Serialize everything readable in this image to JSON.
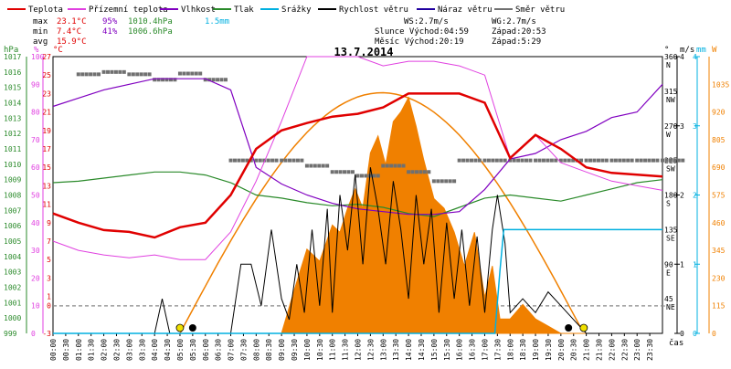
{
  "chart_data": {
    "type": "line",
    "title": "13.7.2014",
    "x_axis_label": "čas",
    "legend": [
      {
        "name": "Teplota",
        "color": "#e00000"
      },
      {
        "name": "Přízemní teplota",
        "color": "#e040e0"
      },
      {
        "name": "Vlhkost",
        "color": "#8000c0"
      },
      {
        "name": "Tlak",
        "color": "#2a8a2a"
      },
      {
        "name": "Srážky",
        "color": "#00b0e0"
      },
      {
        "name": "Rychlost větru",
        "color": "#000000"
      },
      {
        "name": "Náraz větru",
        "color": "#2000a0"
      },
      {
        "name": "Směr větru",
        "color": "#707070"
      }
    ],
    "stats": {
      "max": {
        "label": "max",
        "temp": "23.1°C",
        "hum": "95%",
        "press": "1010.4hPa",
        "rain": "1.5mm"
      },
      "min": {
        "label": "min",
        "temp": "7.4°C",
        "hum": "41%",
        "press": "1006.6hPa"
      },
      "avg": {
        "label": "avg",
        "temp": "15.9°C"
      }
    },
    "wind_info": {
      "ws": "WS:2.7m/s",
      "wg": "WG:2.7m/s"
    },
    "sun": {
      "rise": "Slunce Východ:04:59",
      "set": "Západ:20:53"
    },
    "moon": {
      "rise": "Měsíc  Východ:20:19",
      "set": "Západ:5:29"
    },
    "axes": {
      "hpa": {
        "unit": "hPa",
        "min": 999,
        "max": 1017,
        "ticks": [
          "999",
          "1000",
          "1001",
          "1002",
          "1003",
          "1004",
          "1005",
          "1006",
          "1007",
          "1008",
          "1009",
          "1010",
          "1011",
          "1012",
          "1013",
          "1014",
          "1015",
          "1016",
          "1017"
        ]
      },
      "pct": {
        "unit": "%",
        "min": 0,
        "max": 100,
        "ticks": [
          "0",
          "10",
          "20",
          "30",
          "40",
          "50",
          "60",
          "70",
          "80",
          "90",
          "100"
        ]
      },
      "degc": {
        "unit": "°C",
        "min": -3,
        "max": 27,
        "ticks": [
          "-3",
          "0",
          "1",
          "3",
          "5",
          "7",
          "9",
          "11",
          "13",
          "15",
          "17",
          "19",
          "21",
          "23",
          "25",
          "27"
        ]
      },
      "deg": {
        "unit": "°",
        "min": 0,
        "max": 360,
        "ticks": [
          {
            "v": "360",
            "d": "N"
          },
          {
            "v": "315",
            "d": "NW"
          },
          {
            "v": "270",
            "d": "W"
          },
          {
            "v": "225",
            "d": "SW"
          },
          {
            "v": "180",
            "d": "S"
          },
          {
            "v": "135",
            "d": "SE"
          },
          {
            "v": "90",
            "d": "E"
          },
          {
            "v": "45",
            "d": "NE"
          }
        ]
      },
      "ms": {
        "unit": "m/s",
        "min": 0,
        "max": 4,
        "ticks": [
          "0",
          "1",
          "2",
          "3",
          "4"
        ]
      },
      "mm": {
        "unit": "mm",
        "min": 0,
        "max": 4,
        "ticks": [
          "0",
          "1",
          "2",
          "3",
          "4"
        ]
      },
      "wm2": {
        "unit": "W",
        "min": 0,
        "max": 1150,
        "ticks": [
          "0",
          "115",
          "230",
          "345",
          "460",
          "575",
          "690",
          "805",
          "920",
          "1035"
        ]
      }
    },
    "x_ticks": [
      "00:00",
      "00:30",
      "01:00",
      "01:30",
      "02:00",
      "02:30",
      "03:00",
      "03:30",
      "04:00",
      "04:30",
      "05:00",
      "05:30",
      "06:00",
      "06:30",
      "07:00",
      "07:30",
      "08:00",
      "08:30",
      "09:00",
      "09:30",
      "10:00",
      "10:30",
      "11:00",
      "11:30",
      "12:00",
      "12:30",
      "13:00",
      "13:30",
      "14:00",
      "14:30",
      "15:00",
      "15:30",
      "16:00",
      "16:30",
      "17:00",
      "17:30",
      "18:00",
      "18:30",
      "19:00",
      "19:30",
      "20:00",
      "20:30",
      "21:00",
      "21:30",
      "22:00",
      "22:30",
      "23:00",
      "23:30"
    ],
    "series": {
      "teplota_c": {
        "t": [
          0,
          1,
          2,
          3,
          4,
          5,
          6,
          7,
          8,
          9,
          10,
          11,
          12,
          13,
          14,
          15,
          16,
          17,
          18,
          19,
          20,
          21,
          22,
          23,
          24
        ],
        "v": [
          10,
          9,
          8.2,
          8,
          7.4,
          8.5,
          9,
          12,
          17,
          19,
          19.8,
          20.5,
          20.8,
          21.5,
          23,
          23,
          23,
          22,
          16,
          18.5,
          17,
          15,
          14.4,
          14.2,
          14
        ]
      },
      "prizemni_teplota_c": {
        "t": [
          0,
          1,
          2,
          3,
          4,
          5,
          6,
          7,
          8,
          9,
          10,
          11,
          12,
          13,
          14,
          15,
          16,
          17,
          18,
          19,
          20,
          21,
          22,
          23,
          24
        ],
        "v": [
          7,
          6,
          5.5,
          5.2,
          5.5,
          5,
          5,
          8,
          13.5,
          20,
          27,
          27,
          27,
          26,
          26.5,
          26.5,
          26,
          25,
          16,
          18.5,
          15.5,
          14.5,
          13.5,
          13,
          12.5
        ]
      },
      "vlhkost_pct": {
        "t": [
          0,
          1,
          2,
          3,
          4,
          5,
          6,
          7,
          8,
          9,
          10,
          11,
          12,
          13,
          14,
          15,
          16,
          17,
          18,
          19,
          20,
          21,
          22,
          23,
          24
        ],
        "v": [
          82,
          85,
          88,
          90,
          92,
          92,
          92,
          88,
          60,
          54,
          50,
          47,
          45,
          44,
          43,
          43,
          44,
          52,
          63,
          65,
          70,
          73,
          78,
          80,
          90
        ]
      },
      "tlak_hpa": {
        "t": [
          0,
          1,
          2,
          3,
          4,
          5,
          6,
          7,
          8,
          9,
          10,
          11,
          12,
          13,
          14,
          15,
          16,
          17,
          18,
          19,
          20,
          21,
          22,
          23,
          24
        ],
        "v": [
          1008.8,
          1008.9,
          1009.1,
          1009.3,
          1009.5,
          1009.5,
          1009.3,
          1008.8,
          1008.0,
          1007.8,
          1007.5,
          1007.3,
          1007.4,
          1007.2,
          1006.8,
          1006.6,
          1007.2,
          1007.8,
          1008.0,
          1007.8,
          1007.6,
          1008.0,
          1008.4,
          1008.8,
          1009.0
        ]
      },
      "srazky_mm": {
        "t": [
          0,
          17.4,
          17.6,
          17.75,
          24
        ],
        "v": [
          0,
          0,
          0.9,
          1.5,
          1.5
        ]
      },
      "rychlost_vetru_ms": {
        "t": [
          0,
          4,
          4.3,
          4.6,
          5,
          7,
          7.4,
          7.8,
          8.2,
          8.6,
          9,
          9.3,
          9.6,
          9.9,
          10.2,
          10.5,
          10.8,
          11,
          11.3,
          11.6,
          11.9,
          12.2,
          12.5,
          12.8,
          13.1,
          13.4,
          13.7,
          14,
          14.3,
          14.6,
          14.9,
          15.2,
          15.5,
          15.8,
          16.1,
          16.4,
          16.7,
          17,
          17.3,
          17.5,
          17.8,
          18,
          18.5,
          19,
          19.5,
          20,
          20.5,
          21,
          24
        ],
        "v": [
          0,
          0,
          0.5,
          0,
          0,
          0,
          1.0,
          1.0,
          0.4,
          1.5,
          0.5,
          0.2,
          1.0,
          0.3,
          1.5,
          0.4,
          1.8,
          0.3,
          2.0,
          1.2,
          2.3,
          1.0,
          2.4,
          1.8,
          1.0,
          2.2,
          1.5,
          0.5,
          2.0,
          1.0,
          1.8,
          0.3,
          1.6,
          0.5,
          1.5,
          0.4,
          1.4,
          0.3,
          1.5,
          2.0,
          1.3,
          0.3,
          0.5,
          0.3,
          0.6,
          0.4,
          0.2,
          0,
          0
        ]
      },
      "solar_w_m2": {
        "t": [
          0,
          9,
          9.5,
          10,
          10.5,
          11,
          11.3,
          11.6,
          11.9,
          12.2,
          12.5,
          12.8,
          13.1,
          13.4,
          13.7,
          14,
          14.3,
          14.6,
          15,
          15.4,
          15.8,
          16.2,
          16.6,
          17,
          17.3,
          17.6,
          18,
          18.5,
          19,
          19.5,
          20,
          24
        ],
        "v": [
          0,
          0,
          180,
          350,
          300,
          450,
          420,
          520,
          600,
          520,
          750,
          820,
          700,
          880,
          920,
          980,
          860,
          720,
          560,
          520,
          420,
          280,
          420,
          150,
          280,
          60,
          60,
          120,
          60,
          30,
          0,
          0
        ]
      },
      "smer_vetru_deg": {
        "t": [
          1,
          2,
          3,
          4,
          5,
          6,
          7,
          8,
          9,
          10,
          11,
          12,
          13,
          14,
          15,
          16,
          17,
          18,
          19,
          20,
          21,
          22,
          23,
          24
        ],
        "v": [
          337,
          340,
          337,
          330,
          338,
          330,
          225,
          225,
          225,
          218,
          210,
          205,
          218,
          210,
          198,
          225,
          225,
          225,
          225,
          225,
          225,
          225,
          225,
          225
        ]
      }
    },
    "sun_markers": [
      {
        "t": 5.0,
        "label": "sunrise"
      },
      {
        "t": 20.9,
        "label": "sunset"
      }
    ],
    "moon_markers": [
      {
        "t": 5.5,
        "label": "moonset"
      },
      {
        "t": 20.3,
        "label": "moonrise"
      }
    ]
  }
}
